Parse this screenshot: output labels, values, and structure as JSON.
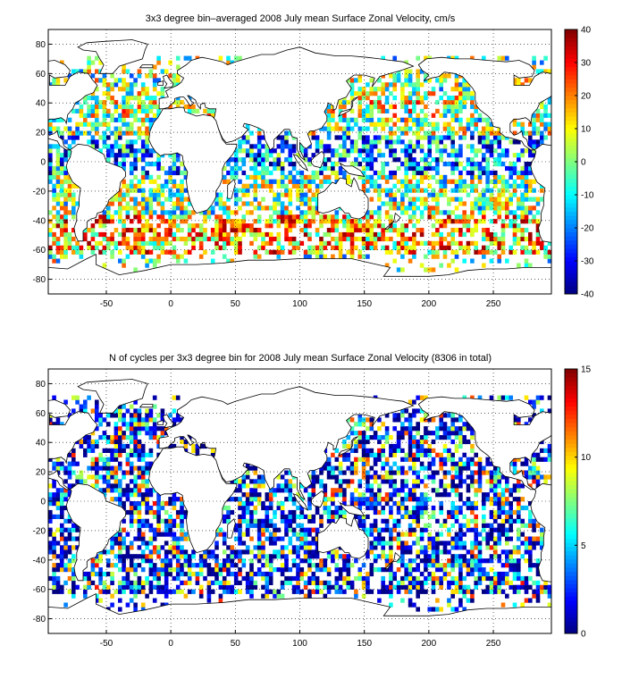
{
  "panels": [
    {
      "id": "velocity",
      "title": "3x3 degree bin–averaged 2008 July mean Surface Zonal Velocity, cm/s",
      "x_ticks": [
        "-50",
        "0",
        "50",
        "100",
        "150",
        "200",
        "250"
      ],
      "y_ticks": [
        "80",
        "60",
        "40",
        "20",
        "0",
        "-20",
        "-40",
        "-60",
        "-80"
      ],
      "colorbar": {
        "min": -40,
        "max": 40,
        "ticks": [
          "40",
          "30",
          "20",
          "10",
          "0",
          "-10",
          "-20",
          "-30",
          "-40"
        ]
      },
      "map": {
        "lon_range": [
          -95,
          295
        ],
        "lat_range": [
          -90,
          90
        ],
        "bin_deg": 3,
        "grid": true,
        "colormap": "jet"
      }
    },
    {
      "id": "cycles",
      "title": "N of cycles per 3x3 degree bin for 2008 July mean Surface Zonal Velocity (8306 in total)",
      "x_ticks": [
        "-50",
        "0",
        "50",
        "100",
        "150",
        "200",
        "250"
      ],
      "y_ticks": [
        "80",
        "60",
        "40",
        "20",
        "0",
        "-20",
        "-40",
        "-60",
        "-80"
      ],
      "colorbar": {
        "min": 0,
        "max": 15,
        "ticks": [
          "15",
          "10",
          "5",
          "0"
        ]
      },
      "map": {
        "lon_range": [
          -95,
          295
        ],
        "lat_range": [
          -90,
          90
        ],
        "bin_deg": 3,
        "grid": true,
        "colormap": "jet"
      }
    }
  ]
}
